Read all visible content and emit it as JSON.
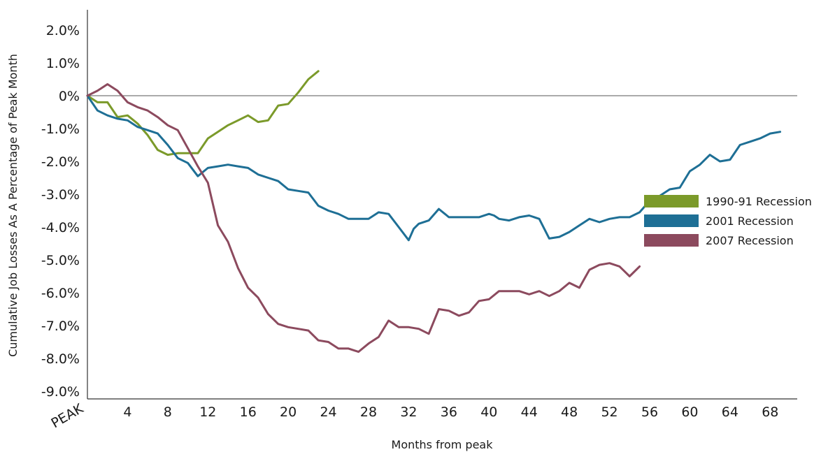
{
  "chart_data": {
    "type": "line",
    "title": "",
    "xlabel": "Months from peak",
    "ylabel": "Cumulative Job Losses As A Percentage of Peak Month",
    "x_origin_label": "PEAK",
    "xlim": [
      0,
      70
    ],
    "ylim": [
      -9,
      2.5
    ],
    "x_ticks": [
      4,
      8,
      12,
      16,
      20,
      24,
      28,
      32,
      36,
      40,
      44,
      48,
      52,
      56,
      60,
      64,
      68
    ],
    "y_ticks": [
      {
        "value": 2,
        "label": "2.0%"
      },
      {
        "value": 1,
        "label": "1.0%"
      },
      {
        "value": 0,
        "label": "0%"
      },
      {
        "value": -1,
        "label": "-1.0%"
      },
      {
        "value": -2,
        "label": "-2.0%"
      },
      {
        "value": -3,
        "label": "-3.0%"
      },
      {
        "value": -4,
        "label": "-4.0%"
      },
      {
        "value": -5,
        "label": "-5.0%"
      },
      {
        "value": -6,
        "label": "-6.0%"
      },
      {
        "value": -7,
        "label": "-7.0%"
      },
      {
        "value": -8,
        "label": "-8.0%"
      },
      {
        "value": -9,
        "label": "-9.0%"
      }
    ],
    "zero_line": true,
    "grid": false,
    "legend_position": "right",
    "series": [
      {
        "name": "1990-91 Recession",
        "color": "#7b9a2a",
        "x": [
          0,
          1,
          2,
          3,
          4,
          5,
          6,
          7,
          8,
          9,
          10,
          11,
          12,
          13,
          14,
          15,
          16,
          17,
          18,
          19,
          20,
          21,
          22,
          23
        ],
        "values": [
          0,
          -0.2,
          -0.2,
          -0.65,
          -0.6,
          -0.85,
          -1.2,
          -1.65,
          -1.8,
          -1.75,
          -1.75,
          -1.75,
          -1.3,
          -1.1,
          -0.9,
          -0.75,
          -0.6,
          -0.8,
          -0.75,
          -0.3,
          -0.25,
          0.1,
          0.5,
          0.75
        ]
      },
      {
        "name": "2001 Recession",
        "color": "#1e6f95",
        "x": [
          0,
          1,
          2,
          3,
          4,
          5,
          6,
          7,
          8,
          9,
          10,
          11,
          12,
          13,
          14,
          15,
          16,
          17,
          18,
          19,
          20,
          21,
          22,
          23,
          24,
          25,
          26,
          27,
          28,
          29,
          30,
          31,
          32,
          32.5,
          33,
          34,
          35,
          36,
          37,
          38,
          39,
          40,
          40.5,
          41,
          42,
          43,
          44,
          45,
          46,
          47,
          48,
          49,
          50,
          51,
          52,
          53,
          54,
          55,
          56,
          57,
          58,
          59,
          60,
          61,
          62,
          63,
          64,
          65,
          66,
          67,
          68,
          69
        ],
        "values": [
          0,
          -0.45,
          -0.6,
          -0.7,
          -0.75,
          -0.95,
          -1.05,
          -1.15,
          -1.5,
          -1.9,
          -2.05,
          -2.45,
          -2.2,
          -2.15,
          -2.1,
          -2.15,
          -2.2,
          -2.4,
          -2.5,
          -2.6,
          -2.85,
          -2.9,
          -2.95,
          -3.35,
          -3.5,
          -3.6,
          -3.75,
          -3.75,
          -3.75,
          -3.55,
          -3.6,
          -4.0,
          -4.4,
          -4.05,
          -3.9,
          -3.8,
          -3.45,
          -3.7,
          -3.7,
          -3.7,
          -3.7,
          -3.6,
          -3.65,
          -3.75,
          -3.8,
          -3.7,
          -3.65,
          -3.75,
          -4.35,
          -4.3,
          -4.15,
          -3.95,
          -3.75,
          -3.85,
          -3.75,
          -3.7,
          -3.7,
          -3.55,
          -3.2,
          -3.05,
          -2.85,
          -2.8,
          -2.3,
          -2.1,
          -1.8,
          -2.0,
          -1.95,
          -1.5,
          -1.4,
          -1.3,
          -1.15,
          -1.1
        ]
      },
      {
        "name": "2007 Recession",
        "color": "#8c4a5e",
        "x": [
          0,
          1,
          2,
          3,
          4,
          5,
          6,
          7,
          8,
          9,
          10,
          11,
          12,
          13,
          14,
          15,
          16,
          17,
          18,
          19,
          20,
          21,
          22,
          23,
          24,
          25,
          26,
          27,
          28,
          29,
          30,
          31,
          32,
          33,
          34,
          35,
          36,
          37,
          38,
          39,
          40,
          41,
          42,
          43,
          44,
          45,
          46,
          47,
          48,
          49,
          50,
          51,
          52,
          53,
          54,
          55
        ],
        "values": [
          0,
          0.15,
          0.35,
          0.15,
          -0.2,
          -0.35,
          -0.45,
          -0.65,
          -0.9,
          -1.05,
          -1.6,
          -2.15,
          -2.65,
          -3.95,
          -4.45,
          -5.25,
          -5.85,
          -6.15,
          -6.65,
          -6.95,
          -7.05,
          -7.1,
          -7.15,
          -7.45,
          -7.5,
          -7.7,
          -7.7,
          -7.8,
          -7.55,
          -7.35,
          -6.85,
          -7.05,
          -7.05,
          -7.1,
          -7.25,
          -6.5,
          -6.55,
          -6.7,
          -6.6,
          -6.25,
          -6.2,
          -5.95,
          -5.95,
          -5.95,
          -6.05,
          -5.95,
          -6.1,
          -5.95,
          -5.7,
          -5.85,
          -5.3,
          -5.15,
          -5.1,
          -5.2,
          -5.5,
          -5.2
        ]
      }
    ]
  }
}
